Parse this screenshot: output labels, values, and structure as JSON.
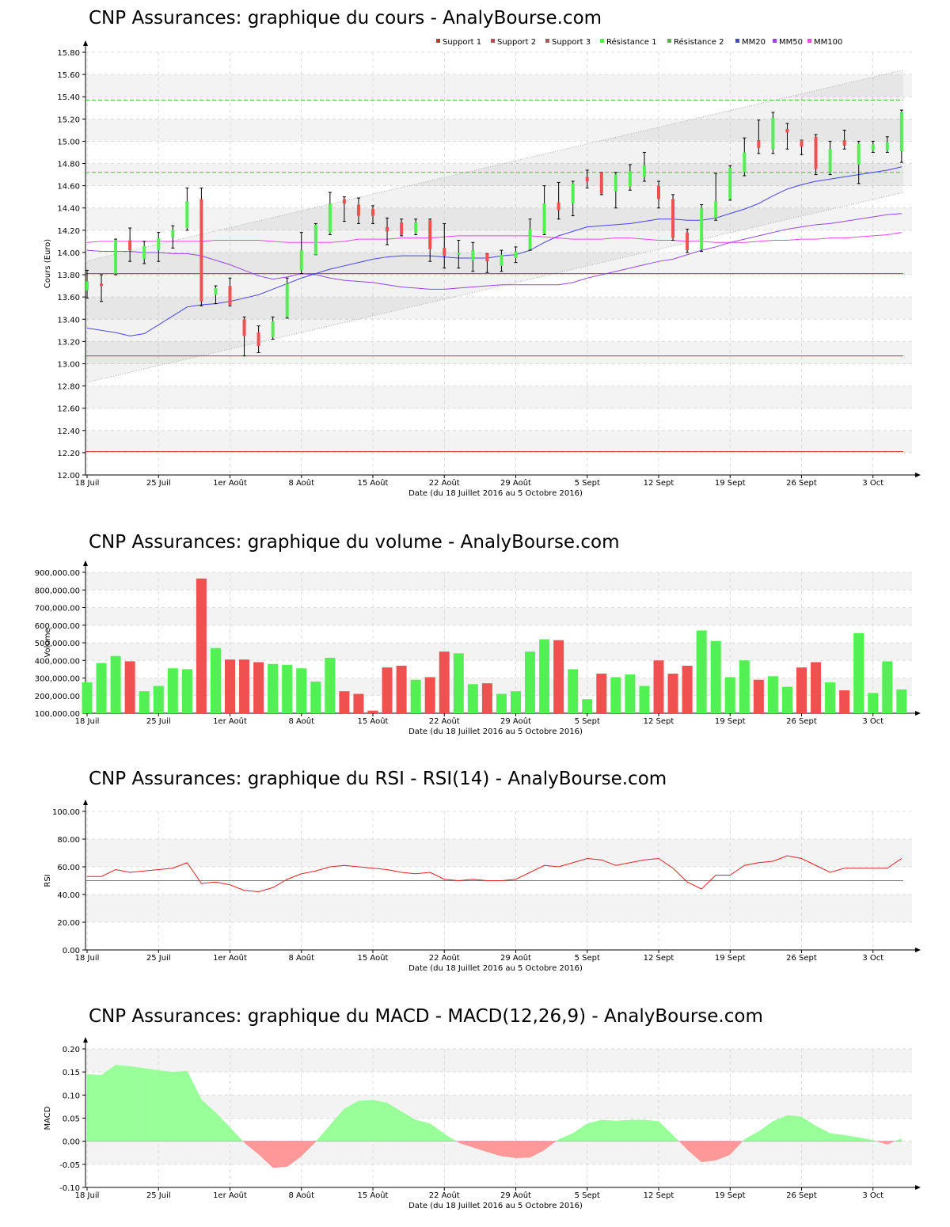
{
  "titles": {
    "price": "CNP Assurances: graphique du cours - AnalyBourse.com",
    "volume": "CNP Assurances: graphique du volume - AnalyBourse.com",
    "rsi": "CNP Assurances: graphique du RSI - RSI(14) - AnalyBourse.com",
    "macd": "CNP Assurances: graphique du MACD - MACD(12,26,9) - AnalyBourse.com"
  },
  "colors": {
    "up": "#52f052",
    "down": "#f05050",
    "grid": "#d8d8d8",
    "support": "#cc3333",
    "resistance": "#44bb44",
    "mm20": "#4444ee",
    "mm50": "#9944ee",
    "mm100": "#ee44ee",
    "rsi": "#dd2222",
    "macd_pos": "#99ff99",
    "macd_neg": "#ff9999"
  },
  "chart_data": [
    {
      "id": "price",
      "type": "candlestick",
      "title": "CNP Assurances: graphique du cours - AnalyBourse.com",
      "xlabel": "Date (du 18 Juillet 2016 au 5 Octobre 2016)",
      "ylabel": "Cours (Euro)",
      "ylim": [
        12.0,
        15.8
      ],
      "yticks": [
        "12.00",
        "12.20",
        "12.40",
        "12.60",
        "12.80",
        "13.00",
        "13.20",
        "13.40",
        "13.60",
        "13.80",
        "14.00",
        "14.20",
        "14.40",
        "14.60",
        "14.80",
        "15.00",
        "15.20",
        "15.40",
        "15.60",
        "15.80"
      ],
      "xticks": [
        {
          "label": "18 Juil",
          "i": 0
        },
        {
          "label": "25 Juil",
          "i": 5
        },
        {
          "label": "1er Août",
          "i": 10
        },
        {
          "label": "8 Août",
          "i": 15
        },
        {
          "label": "15 Août",
          "i": 20
        },
        {
          "label": "22 Août",
          "i": 25
        },
        {
          "label": "29 Août",
          "i": 30
        },
        {
          "label": "5 Sept",
          "i": 35
        },
        {
          "label": "12 Sept",
          "i": 40
        },
        {
          "label": "19 Sept",
          "i": 45
        },
        {
          "label": "26 Sept",
          "i": 50
        },
        {
          "label": "3 Oct",
          "i": 55
        }
      ],
      "legend": [
        "Support 1",
        "Support 2",
        "Support 3",
        "Résistance 1",
        "Résistance 2",
        "MM20",
        "MM50",
        "MM100"
      ],
      "grid": true,
      "levels": {
        "support1": 13.81,
        "support2": 13.07,
        "support3": 12.21,
        "resistance1": 14.72,
        "resistance2": 15.37
      },
      "channel": {
        "upper": [
          13.92,
          15.64
        ],
        "lower": [
          12.83,
          14.54
        ],
        "mid": [
          13.37,
          15.09
        ]
      },
      "candles": [
        {
          "o": 13.66,
          "h": 13.84,
          "l": 13.59,
          "c": 13.74
        },
        {
          "o": 13.72,
          "h": 13.8,
          "l": 13.56,
          "c": 13.7
        },
        {
          "o": 13.81,
          "h": 14.12,
          "l": 13.8,
          "c": 14.11
        },
        {
          "o": 14.11,
          "h": 14.22,
          "l": 13.92,
          "c": 14.02
        },
        {
          "o": 13.94,
          "h": 14.1,
          "l": 13.9,
          "c": 14.06
        },
        {
          "o": 14.02,
          "h": 14.18,
          "l": 13.92,
          "c": 14.13
        },
        {
          "o": 14.14,
          "h": 14.24,
          "l": 14.04,
          "c": 14.2
        },
        {
          "o": 14.22,
          "h": 14.58,
          "l": 14.2,
          "c": 14.46
        },
        {
          "o": 14.48,
          "h": 14.58,
          "l": 13.52,
          "c": 13.56
        },
        {
          "o": 13.62,
          "h": 13.7,
          "l": 13.54,
          "c": 13.68
        },
        {
          "o": 13.7,
          "h": 13.77,
          "l": 13.52,
          "c": 13.53
        },
        {
          "o": 13.4,
          "h": 13.42,
          "l": 13.07,
          "c": 13.25
        },
        {
          "o": 13.28,
          "h": 13.34,
          "l": 13.1,
          "c": 13.16
        },
        {
          "o": 13.24,
          "h": 13.42,
          "l": 13.22,
          "c": 13.38
        },
        {
          "o": 13.42,
          "h": 13.77,
          "l": 13.41,
          "c": 13.72
        },
        {
          "o": 13.84,
          "h": 14.18,
          "l": 13.81,
          "c": 14.02
        },
        {
          "o": 13.98,
          "h": 14.26,
          "l": 13.98,
          "c": 14.25
        },
        {
          "o": 14.18,
          "h": 14.54,
          "l": 14.16,
          "c": 14.44
        },
        {
          "o": 14.48,
          "h": 14.5,
          "l": 14.28,
          "c": 14.44
        },
        {
          "o": 14.43,
          "h": 14.49,
          "l": 14.26,
          "c": 14.33
        },
        {
          "o": 14.39,
          "h": 14.42,
          "l": 14.26,
          "c": 14.33
        },
        {
          "o": 14.23,
          "h": 14.31,
          "l": 14.07,
          "c": 14.19
        },
        {
          "o": 14.27,
          "h": 14.3,
          "l": 14.15,
          "c": 14.16
        },
        {
          "o": 14.18,
          "h": 14.3,
          "l": 14.16,
          "c": 14.27
        },
        {
          "o": 14.29,
          "h": 14.3,
          "l": 13.92,
          "c": 14.03
        },
        {
          "o": 14.04,
          "h": 14.26,
          "l": 13.86,
          "c": 13.97
        },
        {
          "o": 13.98,
          "h": 14.11,
          "l": 13.86,
          "c": 14.0
        },
        {
          "o": 13.93,
          "h": 14.09,
          "l": 13.83,
          "c": 14.02
        },
        {
          "o": 13.99,
          "h": 13.97,
          "l": 13.82,
          "c": 13.92
        },
        {
          "o": 13.88,
          "h": 14.02,
          "l": 13.83,
          "c": 13.98
        },
        {
          "o": 13.95,
          "h": 14.05,
          "l": 13.91,
          "c": 14.01
        },
        {
          "o": 14.03,
          "h": 14.3,
          "l": 14.02,
          "c": 14.21
        },
        {
          "o": 14.17,
          "h": 14.6,
          "l": 14.16,
          "c": 14.44
        },
        {
          "o": 14.45,
          "h": 14.63,
          "l": 14.3,
          "c": 14.38
        },
        {
          "o": 14.44,
          "h": 14.64,
          "l": 14.33,
          "c": 14.62
        },
        {
          "o": 14.68,
          "h": 14.74,
          "l": 14.58,
          "c": 14.64
        },
        {
          "o": 14.72,
          "h": 14.72,
          "l": 14.52,
          "c": 14.53
        },
        {
          "o": 14.55,
          "h": 14.72,
          "l": 14.4,
          "c": 14.7
        },
        {
          "o": 14.59,
          "h": 14.79,
          "l": 14.56,
          "c": 14.73
        },
        {
          "o": 14.68,
          "h": 14.9,
          "l": 14.64,
          "c": 14.78
        },
        {
          "o": 14.6,
          "h": 14.64,
          "l": 14.4,
          "c": 14.48
        },
        {
          "o": 14.48,
          "h": 14.52,
          "l": 14.11,
          "c": 14.13
        },
        {
          "o": 14.18,
          "h": 14.21,
          "l": 14.0,
          "c": 14.02
        },
        {
          "o": 14.03,
          "h": 14.43,
          "l": 14.01,
          "c": 14.4
        },
        {
          "o": 14.31,
          "h": 14.71,
          "l": 14.29,
          "c": 14.46
        },
        {
          "o": 14.48,
          "h": 14.78,
          "l": 14.47,
          "c": 14.76
        },
        {
          "o": 14.72,
          "h": 15.03,
          "l": 14.69,
          "c": 14.9
        },
        {
          "o": 15.01,
          "h": 15.19,
          "l": 14.89,
          "c": 14.94
        },
        {
          "o": 14.93,
          "h": 15.26,
          "l": 14.89,
          "c": 15.21
        },
        {
          "o": 15.11,
          "h": 15.16,
          "l": 14.93,
          "c": 15.08
        },
        {
          "o": 15.01,
          "h": 15.01,
          "l": 14.88,
          "c": 14.95
        },
        {
          "o": 15.04,
          "h": 15.06,
          "l": 14.7,
          "c": 14.75
        },
        {
          "o": 14.72,
          "h": 15.0,
          "l": 14.7,
          "c": 14.93
        },
        {
          "o": 15.01,
          "h": 15.1,
          "l": 14.93,
          "c": 14.96
        },
        {
          "o": 14.79,
          "h": 15.0,
          "l": 14.62,
          "c": 14.98
        },
        {
          "o": 14.92,
          "h": 15.0,
          "l": 14.9,
          "c": 14.97
        },
        {
          "o": 14.92,
          "h": 15.04,
          "l": 14.9,
          "c": 14.99
        },
        {
          "o": 14.91,
          "h": 15.28,
          "l": 14.81,
          "c": 15.26
        }
      ],
      "mm20": [
        13.32,
        13.3,
        13.28,
        13.25,
        13.27,
        13.35,
        13.43,
        13.51,
        13.53,
        13.54,
        13.56,
        13.59,
        13.62,
        13.67,
        13.72,
        13.77,
        13.81,
        13.85,
        13.88,
        13.91,
        13.94,
        13.96,
        13.97,
        13.97,
        13.97,
        13.96,
        13.95,
        13.95,
        13.95,
        13.97,
        13.98,
        14.02,
        14.09,
        14.15,
        14.19,
        14.23,
        14.24,
        14.25,
        14.26,
        14.28,
        14.3,
        14.3,
        14.29,
        14.29,
        14.31,
        14.35,
        14.39,
        14.44,
        14.51,
        14.57,
        14.61,
        14.64,
        14.66,
        14.68,
        14.7,
        14.72,
        14.74,
        14.77
      ],
      "mm50": [
        14.02,
        14.01,
        14.01,
        14.01,
        14.0,
        14.0,
        13.99,
        13.99,
        13.97,
        13.93,
        13.89,
        13.84,
        13.79,
        13.76,
        13.78,
        13.81,
        13.8,
        13.77,
        13.75,
        13.74,
        13.73,
        13.71,
        13.69,
        13.68,
        13.67,
        13.67,
        13.68,
        13.69,
        13.7,
        13.71,
        13.71,
        13.71,
        13.71,
        13.71,
        13.73,
        13.77,
        13.8,
        13.83,
        13.86,
        13.89,
        13.92,
        13.94,
        13.98,
        14.02,
        14.05,
        14.09,
        14.12,
        14.15,
        14.18,
        14.21,
        14.23,
        14.25,
        14.26,
        14.28,
        14.3,
        14.32,
        14.34,
        14.35
      ],
      "mm100": [
        14.09,
        14.1,
        14.1,
        14.1,
        14.1,
        14.1,
        14.1,
        14.1,
        14.1,
        14.11,
        14.11,
        14.11,
        14.11,
        14.1,
        14.09,
        14.09,
        14.09,
        14.09,
        14.1,
        14.12,
        14.12,
        14.12,
        14.13,
        14.13,
        14.13,
        14.14,
        14.15,
        14.15,
        14.15,
        14.15,
        14.15,
        14.15,
        14.14,
        14.13,
        14.12,
        14.12,
        14.12,
        14.13,
        14.13,
        14.12,
        14.11,
        14.11,
        14.1,
        14.1,
        14.09,
        14.09,
        14.09,
        14.1,
        14.11,
        14.11,
        14.12,
        14.12,
        14.13,
        14.13,
        14.14,
        14.15,
        14.16,
        14.18
      ]
    },
    {
      "id": "volume",
      "type": "bar",
      "title": "CNP Assurances: graphique du volume - AnalyBourse.com",
      "xlabel": "Date (du 18 Juillet 2016 au 5 Octobre 2016)",
      "ylabel": "Volume",
      "ylim": [
        100000,
        900000
      ],
      "yticks": [
        "100,000.00",
        "200,000.00",
        "300,000.00",
        "400,000.00",
        "500,000.00",
        "600,000.00",
        "700,000.00",
        "800,000.00",
        "900,000.00"
      ],
      "values": [
        275000,
        385000,
        425000,
        395000,
        225000,
        255000,
        355000,
        350000,
        865000,
        470000,
        405000,
        405000,
        390000,
        380000,
        375000,
        355000,
        280000,
        415000,
        225000,
        210000,
        115000,
        360000,
        370000,
        290000,
        305000,
        450000,
        440000,
        265000,
        270000,
        210000,
        225000,
        450000,
        520000,
        515000,
        350000,
        180000,
        325000,
        305000,
        320000,
        255000,
        400000,
        325000,
        370000,
        570000,
        510000,
        305000,
        400000,
        290000,
        310000,
        250000,
        360000,
        390000,
        275000,
        230000,
        555000,
        215000,
        395000,
        235000
      ],
      "up": [
        1,
        1,
        1,
        0,
        1,
        1,
        1,
        1,
        0,
        1,
        0,
        0,
        0,
        1,
        1,
        1,
        1,
        1,
        0,
        0,
        0,
        0,
        0,
        1,
        0,
        0,
        1,
        1,
        0,
        1,
        1,
        1,
        1,
        0,
        1,
        1,
        0,
        1,
        1,
        1,
        0,
        0,
        0,
        1,
        1,
        1,
        1,
        0,
        1,
        1,
        0,
        0,
        1,
        0,
        1,
        1,
        1,
        1
      ]
    },
    {
      "id": "rsi",
      "type": "line",
      "title": "CNP Assurances: graphique du RSI - RSI(14) - AnalyBourse.com",
      "xlabel": "Date (du 18 Juillet 2016 au 5 Octobre 2016)",
      "ylabel": "RSI",
      "ylim": [
        0,
        100
      ],
      "yticks": [
        "0.00",
        "20.00",
        "40.00",
        "60.00",
        "80.00",
        "100.00"
      ],
      "reference": 50,
      "values": [
        53,
        53,
        58,
        56,
        57,
        58,
        59,
        63,
        48,
        49,
        47,
        43,
        42,
        45,
        51,
        55,
        57,
        60,
        61,
        60,
        59,
        58,
        56,
        55,
        56,
        51,
        50,
        51,
        50,
        50,
        51,
        56,
        61,
        60,
        63,
        66,
        65,
        61,
        63,
        65,
        66,
        59,
        49,
        44,
        54,
        54,
        61,
        63,
        64,
        68,
        66,
        61,
        56,
        59,
        59,
        59,
        59,
        66
      ]
    },
    {
      "id": "macd",
      "type": "area",
      "title": "CNP Assurances: graphique du MACD - MACD(12,26,9) - AnalyBourse.com",
      "xlabel": "Date (du 18 Juillet 2016 au 5 Octobre 2016)",
      "ylabel": "MACD",
      "ylim": [
        -0.1,
        0.2
      ],
      "yticks": [
        "-0.10",
        "-0.05",
        "0.00",
        "0.05",
        "0.10",
        "0.15",
        "0.20"
      ],
      "values": [
        0.145,
        0.143,
        0.165,
        0.162,
        0.158,
        0.153,
        0.15,
        0.152,
        0.09,
        0.062,
        0.03,
        -0.003,
        -0.028,
        -0.057,
        -0.055,
        -0.032,
        -0.001,
        0.035,
        0.07,
        0.087,
        0.089,
        0.083,
        0.064,
        0.046,
        0.038,
        0.016,
        -0.003,
        -0.013,
        -0.023,
        -0.032,
        -0.036,
        -0.035,
        -0.019,
        0.004,
        0.017,
        0.038,
        0.046,
        0.044,
        0.046,
        0.046,
        0.043,
        0.013,
        -0.018,
        -0.045,
        -0.041,
        -0.029,
        0.004,
        0.021,
        0.043,
        0.056,
        0.053,
        0.033,
        0.017,
        0.013,
        0.008,
        0.002,
        -0.007,
        0.006
      ]
    }
  ]
}
